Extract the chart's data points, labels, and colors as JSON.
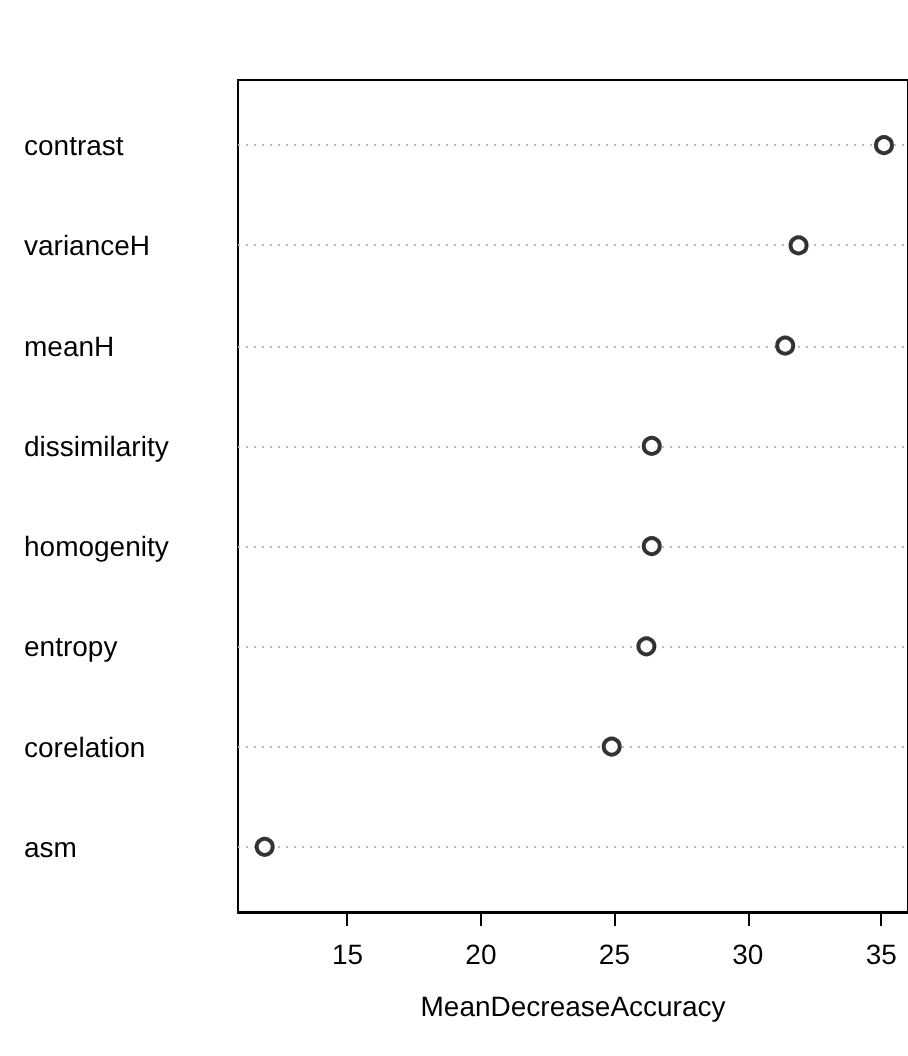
{
  "chart_data": {
    "type": "scatter",
    "xlabel": "MeanDecreaseAccuracy",
    "categories": [
      "contrast",
      "varianceH",
      "meanH",
      "dissimilarity",
      "homogenity",
      "entropy",
      "corelation",
      "asm"
    ],
    "values": [
      35.1,
      31.9,
      31.4,
      26.4,
      26.4,
      26.2,
      24.9,
      11.9
    ],
    "color": "#000000",
    "orientation": "horizontal",
    "marker": "circle",
    "grid": "y",
    "xlim": [
      10.9,
      36
    ],
    "xticks": [
      15,
      20,
      25,
      30,
      35
    ]
  }
}
